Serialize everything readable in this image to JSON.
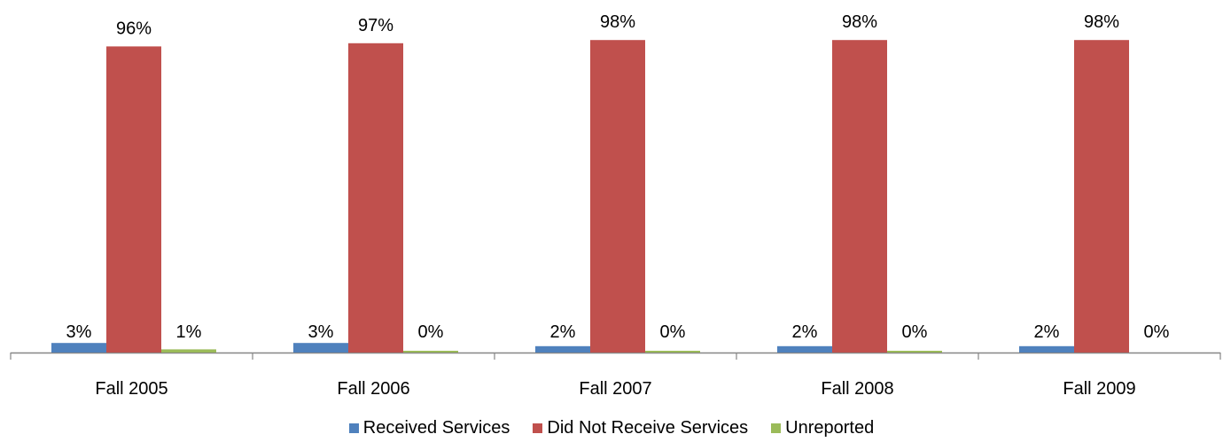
{
  "chart_data": {
    "type": "bar",
    "title": "",
    "xlabel": "",
    "ylabel": "",
    "ylim": [
      0,
      100
    ],
    "grid": false,
    "legend_position": "bottom",
    "value_format": "percent",
    "categories": [
      "Fall 2005",
      "Fall 2006",
      "Fall 2007",
      "Fall 2008",
      "Fall 2009"
    ],
    "series": [
      {
        "name": "Received Services",
        "color": "#4F81BD",
        "values": [
          3,
          3,
          2,
          2,
          2
        ]
      },
      {
        "name": "Did Not Receive Services",
        "color": "#C0504D",
        "values": [
          96,
          97,
          98,
          98,
          98
        ]
      },
      {
        "name": "Unreported",
        "color": "#9BBB59",
        "values": [
          1,
          0,
          0,
          0,
          0
        ]
      }
    ]
  }
}
